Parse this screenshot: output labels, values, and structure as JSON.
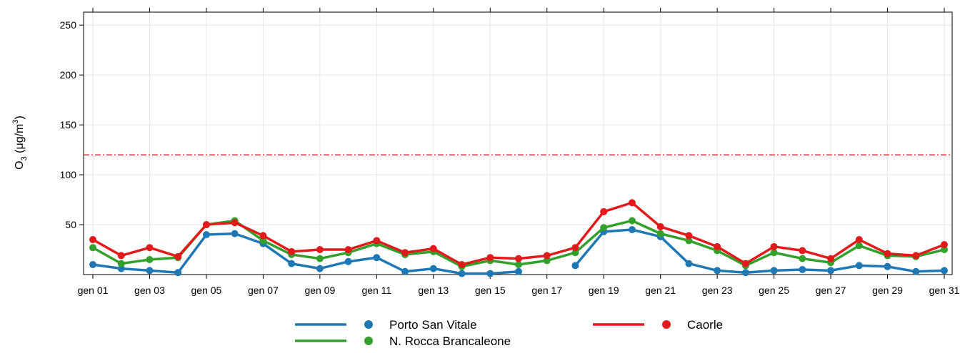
{
  "chart_data": {
    "type": "line",
    "y_label_parts": [
      "O",
      "3",
      " (μg/m",
      "3",
      ")"
    ],
    "categories": [
      "gen 01",
      null,
      "gen 03",
      null,
      "gen 05",
      null,
      "gen 07",
      null,
      "gen 09",
      null,
      "gen 11",
      null,
      "gen 13",
      null,
      "gen 15",
      null,
      "gen 17",
      null,
      "gen 19",
      null,
      "gen 21",
      null,
      "gen 23",
      null,
      "gen 25",
      null,
      "gen 27",
      null,
      "gen 29",
      null,
      "gen 31"
    ],
    "series": [
      {
        "name": "Porto San Vitale",
        "color": "#1f78b4",
        "values": [
          10,
          6,
          4,
          2,
          40,
          41,
          31,
          11,
          6,
          13,
          17,
          3,
          6,
          1,
          1,
          3,
          null,
          9,
          43,
          45,
          38,
          11,
          4,
          2,
          4,
          5,
          4,
          9,
          8,
          3,
          4
        ]
      },
      {
        "name": "N. Rocca Brancaleone",
        "color": "#33a02c",
        "values": [
          27,
          11,
          15,
          17,
          50,
          54,
          34,
          20,
          16,
          22,
          31,
          20,
          23,
          8,
          14,
          10,
          14,
          22,
          47,
          54,
          41,
          34,
          24,
          9,
          22,
          16,
          12,
          29,
          19,
          18,
          25
        ]
      },
      {
        "name": "Caorle",
        "color": "#e31a1c",
        "values": [
          35,
          19,
          27,
          18,
          50,
          52,
          39,
          23,
          25,
          25,
          34,
          22,
          26,
          10,
          17,
          16,
          19,
          27,
          63,
          72,
          48,
          39,
          28,
          11,
          28,
          24,
          16,
          35,
          21,
          19,
          30
        ]
      }
    ],
    "threshold": 120,
    "threshold_color": "#e31a1c",
    "ylim": [
      0,
      263
    ],
    "yticks": [
      50,
      100,
      150,
      200,
      250
    ],
    "grid": true
  }
}
